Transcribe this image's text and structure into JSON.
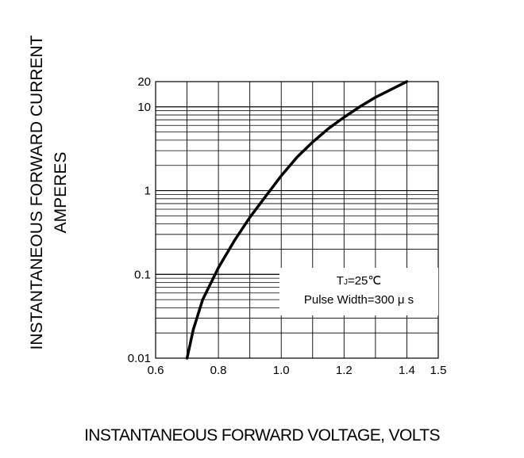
{
  "chart_data": {
    "type": "line",
    "title": "",
    "xlabel": "INSTANTANEOUS FORWARD VOLTAGE, VOLTS",
    "ylabel": [
      "INSTANTANEOUS FORWARD CURRENT",
      "AMPERES"
    ],
    "x_scale": "linear",
    "y_scale": "log",
    "xlim": [
      0.6,
      1.5
    ],
    "ylim": [
      0.01,
      20
    ],
    "x_ticks": [
      0.6,
      0.8,
      1.0,
      1.2,
      1.4,
      1.5
    ],
    "x_tick_labels": [
      "0.6",
      "0.8",
      "1.0",
      "1.2",
      "1.4",
      "1.5"
    ],
    "y_ticks": [
      0.01,
      0.1,
      1,
      10,
      20
    ],
    "y_tick_labels": [
      "0.01",
      "0.1",
      "1",
      "10",
      "20"
    ],
    "grid": true,
    "annotation": {
      "line1_main": "T",
      "line1_sub": "J",
      "line1_rest": "=25℃",
      "line2": "Pulse Width=300 μ s"
    },
    "series": [
      {
        "x": [
          0.7,
          0.72,
          0.75,
          0.8,
          0.85,
          0.9,
          0.95,
          1.0,
          1.05,
          1.1,
          1.15,
          1.2,
          1.25,
          1.3,
          1.4
        ],
        "y": [
          0.01,
          0.022,
          0.05,
          0.12,
          0.25,
          0.48,
          0.85,
          1.5,
          2.5,
          3.8,
          5.5,
          7.5,
          10,
          13,
          20
        ]
      }
    ]
  }
}
